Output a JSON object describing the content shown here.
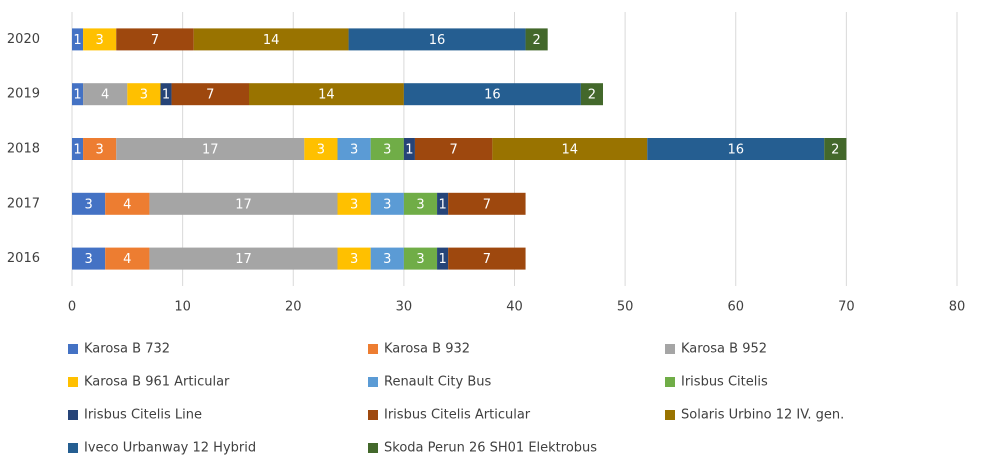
{
  "chart_data": {
    "type": "stacked-bar-horizontal",
    "categories": [
      "2016",
      "2017",
      "2018",
      "2019",
      "2020"
    ],
    "series": [
      {
        "name": "Karosa B 732",
        "color": "#4472c4",
        "values": [
          3,
          3,
          1,
          1,
          1
        ]
      },
      {
        "name": "Karosa B 932",
        "color": "#ed7d31",
        "values": [
          4,
          4,
          3,
          null,
          null
        ]
      },
      {
        "name": "Karosa B 952",
        "color": "#a5a5a5",
        "values": [
          17,
          17,
          17,
          4,
          null
        ]
      },
      {
        "name": "Karosa B 961 Articular",
        "color": "#ffc000",
        "values": [
          3,
          3,
          3,
          3,
          3
        ]
      },
      {
        "name": "Renault City Bus",
        "color": "#5b9bd5",
        "values": [
          3,
          3,
          3,
          null,
          null
        ]
      },
      {
        "name": "Irisbus Citelis",
        "color": "#70ad47",
        "values": [
          3,
          3,
          3,
          null,
          null
        ]
      },
      {
        "name": "Irisbus Citelis Line",
        "color": "#264478",
        "values": [
          1,
          1,
          1,
          1,
          null
        ]
      },
      {
        "name": "Irisbus Citelis Articular",
        "color": "#9e480e",
        "values": [
          7,
          7,
          7,
          7,
          7
        ]
      },
      {
        "name": "Solaris Urbino 12 IV. gen.",
        "color": "#997300",
        "values": [
          null,
          null,
          14,
          14,
          14
        ]
      },
      {
        "name": "Iveco Urbanway 12 Hybrid",
        "color": "#255e91",
        "values": [
          null,
          null,
          16,
          16,
          16
        ]
      },
      {
        "name": "Skoda Perun 26 SH01 Elektrobus",
        "color": "#43682b",
        "values": [
          null,
          null,
          2,
          2,
          2
        ]
      }
    ],
    "xlim": [
      0,
      80
    ],
    "xticks": [
      0,
      10,
      20,
      30,
      40,
      50,
      60,
      70,
      80
    ],
    "grid": true,
    "legend": "bottom"
  }
}
